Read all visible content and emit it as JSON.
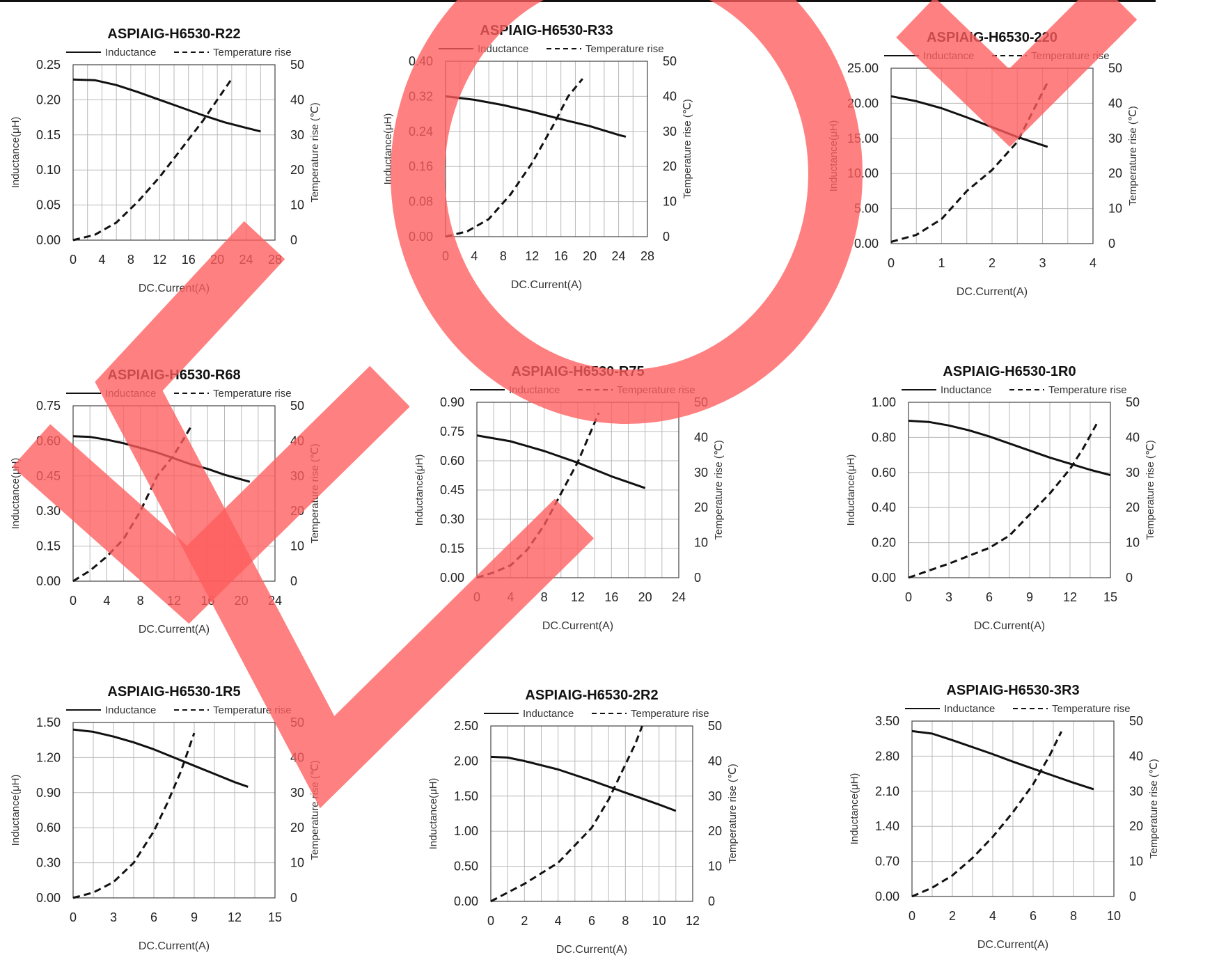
{
  "charts_meta": {
    "legend_inductance": "Inductance",
    "legend_temperature": "Temperature rise",
    "xlabel": "DC.Current(A)",
    "ylabel_left": "Inductance(μH)",
    "ylabel_right": "Temperature rise (℃)",
    "colors": {
      "lines": "#111111",
      "grid": "#b8b8b8",
      "overlay": "#ff5c5c"
    }
  },
  "chart_data": [
    {
      "type": "line",
      "title": "ASPIAIG-H6530-R22",
      "xlabel": "DC.Current(A)",
      "ylabel": "Inductance(μH)",
      "y2label": "Temperature rise (℃)",
      "xticks": [
        "0",
        "4",
        "8",
        "12",
        "16",
        "20",
        "24",
        "28"
      ],
      "xlim": [
        0,
        28
      ],
      "yticks": [
        "0.00",
        "0.05",
        "0.10",
        "0.15",
        "0.20",
        "0.25"
      ],
      "ylim": [
        0,
        0.25
      ],
      "y2ticks": [
        "0",
        "10",
        "20",
        "30",
        "40",
        "50"
      ],
      "y2lim": [
        0,
        50
      ],
      "grid": true,
      "legend": "top",
      "series": [
        {
          "name": "Inductance",
          "axis": "left",
          "style": "solid",
          "x": [
            0,
            3,
            6,
            9,
            12,
            15,
            18,
            21,
            24,
            26
          ],
          "y": [
            0.229,
            0.228,
            0.221,
            0.211,
            0.2,
            0.189,
            0.178,
            0.168,
            0.16,
            0.155
          ]
        },
        {
          "name": "Temperature rise",
          "axis": "right",
          "style": "dashed",
          "x": [
            0,
            3,
            6,
            9,
            12,
            15,
            18,
            20,
            22
          ],
          "y": [
            0,
            1.5,
            5,
            11,
            18,
            26,
            34,
            40,
            46
          ]
        }
      ]
    },
    {
      "type": "line",
      "title": "ASPIAIG-H6530-R33",
      "xlabel": "DC.Current(A)",
      "ylabel": "Inductance(μH)",
      "y2label": "Temperature rise (℃)",
      "xticks": [
        "0",
        "4",
        "8",
        "12",
        "16",
        "20",
        "24",
        "28"
      ],
      "xlim": [
        0,
        28
      ],
      "yticks": [
        "0.00",
        "0.08",
        "0.16",
        "0.24",
        "0.32",
        "0.40"
      ],
      "ylim": [
        0,
        0.4
      ],
      "y2ticks": [
        "0",
        "10",
        "20",
        "30",
        "40",
        "50"
      ],
      "y2lim": [
        0,
        50
      ],
      "grid": true,
      "legend": "top",
      "series": [
        {
          "name": "Inductance",
          "axis": "left",
          "style": "solid",
          "x": [
            0,
            4,
            8,
            12,
            16,
            20,
            24,
            25
          ],
          "y": [
            0.32,
            0.312,
            0.3,
            0.285,
            0.268,
            0.252,
            0.232,
            0.228
          ]
        },
        {
          "name": "Temperature rise",
          "axis": "right",
          "style": "dashed",
          "x": [
            0,
            3,
            6,
            9,
            12,
            15,
            17,
            19
          ],
          "y": [
            0,
            1.5,
            5,
            12,
            21,
            32,
            40,
            45
          ]
        }
      ]
    },
    {
      "type": "line",
      "title": "ASPIAIG-H6530-220",
      "xlabel": "DC.Current(A)",
      "ylabel": "Inductance(μH)",
      "y2label": "Temperature rise (℃)",
      "xticks": [
        "0",
        "1",
        "2",
        "3",
        "4"
      ],
      "xlim": [
        0,
        4
      ],
      "yticks": [
        "0.00",
        "5.00",
        "10.00",
        "15.00",
        "20.00",
        "25.00"
      ],
      "ylim": [
        0,
        25
      ],
      "y2ticks": [
        "0",
        "10",
        "20",
        "30",
        "40",
        "50"
      ],
      "y2lim": [
        0,
        50
      ],
      "grid": true,
      "legend": "top",
      "series": [
        {
          "name": "Inductance",
          "axis": "left",
          "style": "solid",
          "x": [
            0,
            0.5,
            1,
            1.5,
            2,
            2.5,
            3.1
          ],
          "y": [
            21.0,
            20.3,
            19.3,
            18.0,
            16.6,
            15.2,
            13.8
          ]
        },
        {
          "name": "Temperature rise",
          "axis": "right",
          "style": "dashed",
          "x": [
            0,
            0.5,
            1,
            1.5,
            2,
            2.5,
            3.1
          ],
          "y": [
            0.5,
            2.5,
            7,
            15,
            21,
            29,
            46
          ]
        }
      ]
    },
    {
      "type": "line",
      "title": "ASPIAIG-H6530-R68",
      "xlabel": "DC.Current(A)",
      "ylabel": "Inductance(μH)",
      "y2label": "Temperature rise (℃)",
      "xticks": [
        "0",
        "4",
        "8",
        "12",
        "16",
        "20",
        "24"
      ],
      "xlim": [
        0,
        24
      ],
      "yticks": [
        "0.00",
        "0.15",
        "0.30",
        "0.45",
        "0.60",
        "0.75"
      ],
      "ylim": [
        0,
        0.75
      ],
      "y2ticks": [
        "0",
        "10",
        "20",
        "30",
        "40",
        "50"
      ],
      "y2lim": [
        0,
        50
      ],
      "grid": true,
      "legend": "top",
      "series": [
        {
          "name": "Inductance",
          "axis": "left",
          "style": "solid",
          "x": [
            0,
            2,
            4,
            6,
            8,
            10,
            12,
            14,
            16,
            18,
            20,
            21
          ],
          "y": [
            0.62,
            0.617,
            0.605,
            0.59,
            0.57,
            0.55,
            0.525,
            0.5,
            0.48,
            0.455,
            0.435,
            0.425
          ]
        },
        {
          "name": "Temperature rise",
          "axis": "right",
          "style": "dashed",
          "x": [
            0,
            2,
            4,
            6,
            8,
            10,
            12,
            14
          ],
          "y": [
            0,
            3,
            7,
            12,
            20,
            30,
            36,
            44
          ]
        }
      ]
    },
    {
      "type": "line",
      "title": "ASPIAIG-H6530-R75",
      "xlabel": "DC.Current(A)",
      "ylabel": "Inductance(μH)",
      "y2label": "Temperature rise (℃)",
      "xticks": [
        "0",
        "4",
        "8",
        "12",
        "16",
        "20",
        "24"
      ],
      "xlim": [
        0,
        24
      ],
      "yticks": [
        "0.00",
        "0.15",
        "0.30",
        "0.45",
        "0.60",
        "0.75",
        "0.90"
      ],
      "ylim": [
        0,
        0.9
      ],
      "y2ticks": [
        "0",
        "10",
        "20",
        "30",
        "40",
        "50"
      ],
      "y2lim": [
        0,
        50
      ],
      "grid": true,
      "legend": "top",
      "series": [
        {
          "name": "Inductance",
          "axis": "left",
          "style": "solid",
          "x": [
            0,
            4,
            8,
            12,
            16,
            20
          ],
          "y": [
            0.73,
            0.7,
            0.65,
            0.59,
            0.52,
            0.46
          ]
        },
        {
          "name": "Temperature rise",
          "axis": "right",
          "style": "dashed",
          "x": [
            0,
            2,
            4,
            6,
            8,
            10,
            12,
            14.5
          ],
          "y": [
            0,
            1.5,
            3.5,
            8,
            15,
            24,
            33,
            47
          ]
        }
      ]
    },
    {
      "type": "line",
      "title": "ASPIAIG-H6530-1R0",
      "xlabel": "DC.Current(A)",
      "ylabel": "Inductance(μH)",
      "y2label": "Temperature rise (℃)",
      "xticks": [
        "0",
        "3",
        "6",
        "9",
        "12",
        "15"
      ],
      "xlim": [
        0,
        15
      ],
      "yticks": [
        "0.00",
        "0.20",
        "0.40",
        "0.60",
        "0.80",
        "1.00"
      ],
      "ylim": [
        0,
        1.0
      ],
      "y2ticks": [
        "0",
        "10",
        "20",
        "30",
        "40",
        "50"
      ],
      "y2lim": [
        0,
        50
      ],
      "grid": true,
      "legend": "top",
      "series": [
        {
          "name": "Inductance",
          "axis": "left",
          "style": "solid",
          "x": [
            0,
            1.5,
            3,
            4.5,
            6,
            7.5,
            9,
            10.5,
            12,
            13.5,
            15
          ],
          "y": [
            0.895,
            0.888,
            0.868,
            0.84,
            0.805,
            0.765,
            0.725,
            0.685,
            0.65,
            0.615,
            0.585
          ]
        },
        {
          "name": "Temperature rise",
          "axis": "right",
          "style": "dashed",
          "x": [
            0,
            3,
            6,
            7.5,
            9,
            10.5,
            12,
            13,
            14
          ],
          "y": [
            0,
            4,
            8.5,
            12,
            18,
            24,
            31,
            37,
            44
          ]
        }
      ]
    },
    {
      "type": "line",
      "title": "ASPIAIG-H6530-1R5",
      "xlabel": "DC.Current(A)",
      "ylabel": "Inductance(μH)",
      "y2label": "Temperature rise (℃)",
      "xticks": [
        "0",
        "3",
        "6",
        "9",
        "12",
        "15"
      ],
      "xlim": [
        0,
        15
      ],
      "yticks": [
        "0.00",
        "0.30",
        "0.60",
        "0.90",
        "1.20",
        "1.50"
      ],
      "ylim": [
        0,
        1.5
      ],
      "y2ticks": [
        "0",
        "10",
        "20",
        "30",
        "40",
        "50"
      ],
      "y2lim": [
        0,
        50
      ],
      "grid": true,
      "legend": "top",
      "series": [
        {
          "name": "Inductance",
          "axis": "left",
          "style": "solid",
          "x": [
            0,
            1.5,
            3,
            4.5,
            6,
            7.5,
            9,
            10.5,
            12,
            13
          ],
          "y": [
            1.44,
            1.42,
            1.38,
            1.33,
            1.27,
            1.2,
            1.13,
            1.06,
            0.99,
            0.95
          ]
        },
        {
          "name": "Temperature rise",
          "axis": "right",
          "style": "dashed",
          "x": [
            0,
            1.5,
            3,
            4.5,
            6,
            7,
            8,
            9
          ],
          "y": [
            0,
            1.5,
            4.5,
            10,
            19,
            27,
            36,
            47
          ]
        }
      ]
    },
    {
      "type": "line",
      "title": "ASPIAIG-H6530-2R2",
      "xlabel": "DC.Current(A)",
      "ylabel": "Inductance(μH)",
      "y2label": "Temperature rise (℃)",
      "xticks": [
        "0",
        "2",
        "4",
        "6",
        "8",
        "10",
        "12"
      ],
      "xlim": [
        0,
        12
      ],
      "yticks": [
        "0.00",
        "0.50",
        "1.00",
        "1.50",
        "2.00",
        "2.50"
      ],
      "ylim": [
        0,
        2.5
      ],
      "y2ticks": [
        "0",
        "10",
        "20",
        "30",
        "40",
        "50"
      ],
      "y2lim": [
        0,
        50
      ],
      "grid": true,
      "legend": "top",
      "series": [
        {
          "name": "Inductance",
          "axis": "left",
          "style": "solid",
          "x": [
            0,
            1,
            2,
            4,
            6,
            8,
            10,
            11
          ],
          "y": [
            2.06,
            2.05,
            2.0,
            1.88,
            1.72,
            1.55,
            1.38,
            1.29
          ]
        },
        {
          "name": "Temperature rise",
          "axis": "right",
          "style": "dashed",
          "x": [
            0,
            2,
            4,
            6,
            7,
            8,
            8.6,
            9
          ],
          "y": [
            0,
            5,
            11,
            21,
            29,
            39,
            45,
            50
          ]
        }
      ]
    },
    {
      "type": "line",
      "title": "ASPIAIG-H6530-3R3",
      "xlabel": "DC.Current(A)",
      "ylabel": "Inductance(μH)",
      "y2label": "Temperature rise (℃)",
      "xticks": [
        "0",
        "2",
        "4",
        "6",
        "8",
        "10"
      ],
      "xlim": [
        0,
        10
      ],
      "yticks": [
        "0.00",
        "0.70",
        "1.40",
        "2.10",
        "2.80",
        "3.50"
      ],
      "ylim": [
        0,
        3.5
      ],
      "y2ticks": [
        "0",
        "10",
        "20",
        "30",
        "40",
        "50"
      ],
      "y2lim": [
        0,
        50
      ],
      "grid": true,
      "legend": "top",
      "series": [
        {
          "name": "Inductance",
          "axis": "left",
          "style": "solid",
          "x": [
            0,
            1,
            2,
            3,
            4,
            5,
            6,
            7,
            8,
            9
          ],
          "y": [
            3.3,
            3.25,
            3.12,
            2.98,
            2.84,
            2.69,
            2.55,
            2.41,
            2.27,
            2.14
          ]
        },
        {
          "name": "Temperature rise",
          "axis": "right",
          "style": "dashed",
          "x": [
            0,
            1,
            2,
            3,
            4,
            5,
            6,
            6.8,
            7.4
          ],
          "y": [
            0,
            2.5,
            6,
            11,
            17,
            24,
            32,
            40,
            47
          ]
        }
      ]
    }
  ]
}
